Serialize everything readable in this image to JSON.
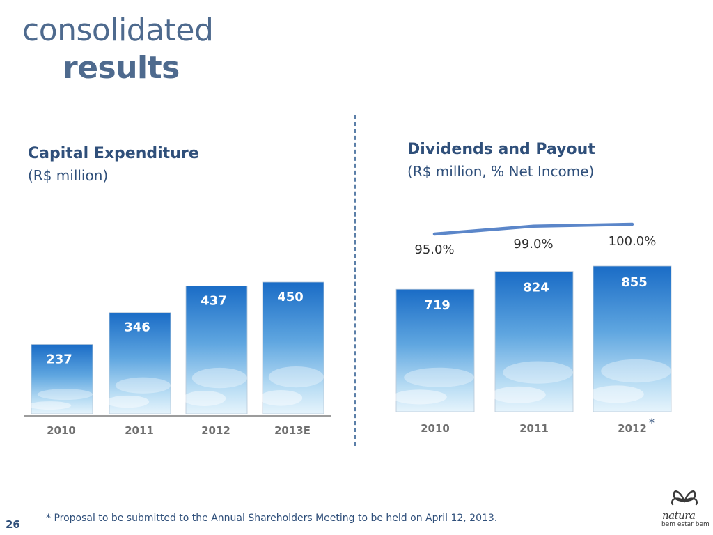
{
  "slide": {
    "title_line1": "consolidated",
    "title_line2": "results",
    "page_number": "26",
    "footnote": "* Proposal to be submitted to the Annual Shareholders Meeting to be held on April 12, 2013.",
    "brand": {
      "word": "natura",
      "tagline": "bem estar bem"
    }
  },
  "charts": {
    "capex": {
      "heading": "Capital Expenditure",
      "sub": "(R$ million)"
    },
    "dividends": {
      "heading": "Dividends and Payout",
      "sub": "(R$ million, % Net Income)",
      "asterisk": "*"
    }
  },
  "colors": {
    "bar_top": "#1c6ec8",
    "bar_bottom": "#d7ecf8",
    "line": "#5b86c9",
    "text": "#2f4f7a",
    "axis": "#3a3a3a"
  },
  "chart_data": [
    {
      "type": "bar",
      "title": "Capital Expenditure",
      "ylabel": "(R$ million)",
      "categories": [
        "2010",
        "2011",
        "2012",
        "2013E"
      ],
      "values": [
        237,
        346,
        437,
        450
      ]
    },
    {
      "type": "bar",
      "title": "Dividends and Payout",
      "ylabel": "(R$ million, % Net Income)",
      "categories": [
        "2010",
        "2011",
        "2012"
      ],
      "series": [
        {
          "name": "Dividends",
          "type": "bar",
          "values": [
            719,
            824,
            855
          ]
        },
        {
          "name": "Payout",
          "type": "line",
          "values": [
            95.0,
            99.0,
            100.0
          ],
          "labels": [
            "95.0%",
            "99.0%",
            "100.0%"
          ]
        }
      ]
    }
  ]
}
